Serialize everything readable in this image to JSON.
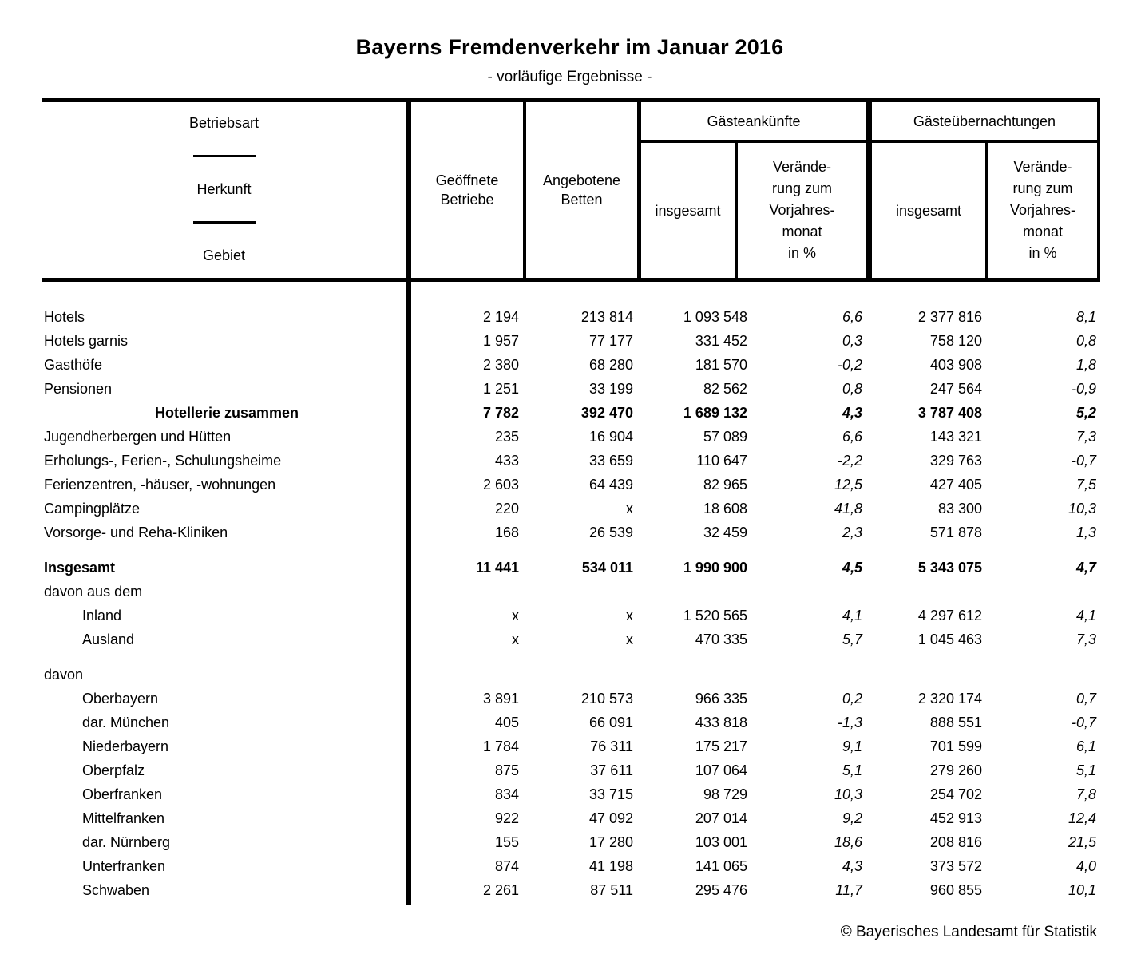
{
  "title": "Bayerns Fremdenverkehr im Januar 2016",
  "subtitle": "- vorläufige Ergebnisse -",
  "table": {
    "header": {
      "rowhead_lines": [
        "Betriebsart",
        "Herkunft",
        "Gebiet"
      ],
      "col_open_businesses": "Geöffnete Betriebe",
      "col_offered_beds": "Angebotene Betten",
      "group_arrivals": "Gästeankünfte",
      "group_overnights": "Gästeübernachtungen",
      "sub_total": "insgesamt",
      "sub_change": "Verände-\nrung zum\nVorjahres-\nmonat\nin %"
    },
    "rows": [
      {
        "label": "Hotels",
        "indent": false,
        "bold": false,
        "center": false,
        "gap_before": false,
        "values": [
          "2 194",
          "213 814",
          "1 093 548",
          "6,6",
          "2 377 816",
          "8,1"
        ]
      },
      {
        "label": "Hotels garnis",
        "indent": false,
        "bold": false,
        "center": false,
        "gap_before": false,
        "values": [
          "1 957",
          "77 177",
          "331 452",
          "0,3",
          "758 120",
          "0,8"
        ]
      },
      {
        "label": "Gasthöfe",
        "indent": false,
        "bold": false,
        "center": false,
        "gap_before": false,
        "values": [
          "2 380",
          "68 280",
          "181 570",
          "-0,2",
          "403 908",
          "1,8"
        ]
      },
      {
        "label": "Pensionen",
        "indent": false,
        "bold": false,
        "center": false,
        "gap_before": false,
        "values": [
          "1 251",
          "33 199",
          "82 562",
          "0,8",
          "247 564",
          "-0,9"
        ]
      },
      {
        "label": "Hotellerie zusammen",
        "indent": false,
        "bold": true,
        "center": true,
        "gap_before": false,
        "values": [
          "7 782",
          "392 470",
          "1 689 132",
          "4,3",
          "3 787 408",
          "5,2"
        ]
      },
      {
        "label": "Jugendherbergen und Hütten",
        "indent": false,
        "bold": false,
        "center": false,
        "gap_before": false,
        "values": [
          "235",
          "16 904",
          "57 089",
          "6,6",
          "143 321",
          "7,3"
        ]
      },
      {
        "label": "Erholungs-, Ferien-, Schulungsheime",
        "indent": false,
        "bold": false,
        "center": false,
        "gap_before": false,
        "values": [
          "433",
          "33 659",
          "110 647",
          "-2,2",
          "329 763",
          "-0,7"
        ]
      },
      {
        "label": "Ferienzentren, -häuser, -wohnungen",
        "indent": false,
        "bold": false,
        "center": false,
        "gap_before": false,
        "values": [
          "2 603",
          "64 439",
          "82 965",
          "12,5",
          "427 405",
          "7,5"
        ]
      },
      {
        "label": "Campingplätze",
        "indent": false,
        "bold": false,
        "center": false,
        "gap_before": false,
        "values": [
          "220",
          "x",
          "18 608",
          "41,8",
          "83 300",
          "10,3"
        ]
      },
      {
        "label": "Vorsorge- und Reha-Kliniken",
        "indent": false,
        "bold": false,
        "center": false,
        "gap_before": false,
        "values": [
          "168",
          "26 539",
          "32 459",
          "2,3",
          "571 878",
          "1,3"
        ]
      },
      {
        "label": "Insgesamt",
        "indent": false,
        "bold": true,
        "center": false,
        "gap_before": true,
        "values": [
          "11 441",
          "534 011",
          "1 990 900",
          "4,5",
          "5 343 075",
          "4,7"
        ]
      },
      {
        "label": "davon aus dem",
        "indent": false,
        "bold": false,
        "center": false,
        "gap_before": false,
        "values": [
          "",
          "",
          "",
          "",
          "",
          ""
        ]
      },
      {
        "label": "Inland",
        "indent": true,
        "bold": false,
        "center": false,
        "gap_before": false,
        "values": [
          "x",
          "x",
          "1 520 565",
          "4,1",
          "4 297 612",
          "4,1"
        ]
      },
      {
        "label": "Ausland",
        "indent": true,
        "bold": false,
        "center": false,
        "gap_before": false,
        "values": [
          "x",
          "x",
          "470 335",
          "5,7",
          "1 045 463",
          "7,3"
        ]
      },
      {
        "label": "davon",
        "indent": false,
        "bold": false,
        "center": false,
        "gap_before": true,
        "values": [
          "",
          "",
          "",
          "",
          "",
          ""
        ]
      },
      {
        "label": "Oberbayern",
        "indent": true,
        "bold": false,
        "center": false,
        "gap_before": false,
        "values": [
          "3 891",
          "210 573",
          "966 335",
          "0,2",
          "2 320 174",
          "0,7"
        ]
      },
      {
        "label": "dar. München",
        "indent": true,
        "bold": false,
        "center": false,
        "gap_before": false,
        "values": [
          "405",
          "66 091",
          "433 818",
          "-1,3",
          "888 551",
          "-0,7"
        ]
      },
      {
        "label": "Niederbayern",
        "indent": true,
        "bold": false,
        "center": false,
        "gap_before": false,
        "values": [
          "1 784",
          "76 311",
          "175 217",
          "9,1",
          "701 599",
          "6,1"
        ]
      },
      {
        "label": "Oberpfalz",
        "indent": true,
        "bold": false,
        "center": false,
        "gap_before": false,
        "values": [
          "875",
          "37 611",
          "107 064",
          "5,1",
          "279 260",
          "5,1"
        ]
      },
      {
        "label": "Oberfranken",
        "indent": true,
        "bold": false,
        "center": false,
        "gap_before": false,
        "values": [
          "834",
          "33 715",
          "98 729",
          "10,3",
          "254 702",
          "7,8"
        ]
      },
      {
        "label": "Mittelfranken",
        "indent": true,
        "bold": false,
        "center": false,
        "gap_before": false,
        "values": [
          "922",
          "47 092",
          "207 014",
          "9,2",
          "452 913",
          "12,4"
        ]
      },
      {
        "label": "dar. Nürnberg",
        "indent": true,
        "bold": false,
        "center": false,
        "gap_before": false,
        "values": [
          "155",
          "17 280",
          "103 001",
          "18,6",
          "208 816",
          "21,5"
        ]
      },
      {
        "label": "Unterfranken",
        "indent": true,
        "bold": false,
        "center": false,
        "gap_before": false,
        "values": [
          "874",
          "41 198",
          "141 065",
          "4,3",
          "373 572",
          "4,0"
        ]
      },
      {
        "label": "Schwaben",
        "indent": true,
        "bold": false,
        "center": false,
        "gap_before": false,
        "values": [
          "2 261",
          "87 511",
          "295 476",
          "11,7",
          "960 855",
          "10,1"
        ]
      }
    ]
  },
  "footer": {
    "copyright": "© Bayerisches Landesamt für Statistik"
  }
}
